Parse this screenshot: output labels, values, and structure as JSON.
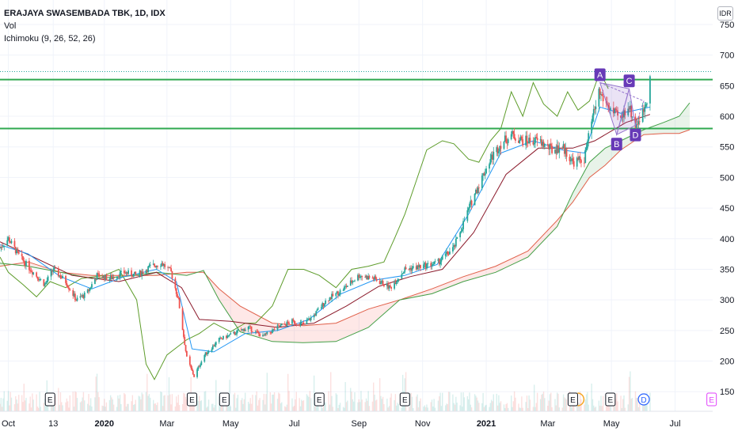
{
  "legend": {
    "title": "ERAJAYA SWASEMBADA TBK, 1D, IDX",
    "vol": "Vol",
    "ichimoku": "Ichimoku (9, 26, 52, 26)"
  },
  "currency": "IDR",
  "colors": {
    "up": "#26a69a",
    "down": "#ef5350",
    "conversion": "#2196f3",
    "base": "#8b1a2b",
    "lagging": "#5d9c2a",
    "spanA": "#43a047",
    "spanB": "#e0604a",
    "cloud_up": "rgba(67,160,71,0.12)",
    "cloud_down": "rgba(244,67,54,0.12)",
    "hline": "#2fa84f",
    "marker": "#673ab7"
  },
  "chart_data": {
    "type": "candlestick",
    "y_ticks": [
      150,
      200,
      250,
      300,
      350,
      400,
      450,
      500,
      550,
      600,
      650,
      700,
      750
    ],
    "ylim": [
      118,
      790
    ],
    "x_range": [
      "2019-09-23",
      "2021-08-06"
    ],
    "x_ticks": [
      {
        "date": "2019-10-01",
        "label": "Oct"
      },
      {
        "date": "2019-11-13",
        "label": "13"
      },
      {
        "date": "2020-01-01",
        "label": "2020"
      },
      {
        "date": "2020-03-01",
        "label": "Mar"
      },
      {
        "date": "2020-05-01",
        "label": "May"
      },
      {
        "date": "2020-07-01",
        "label": "Jul"
      },
      {
        "date": "2020-09-01",
        "label": "Sep"
      },
      {
        "date": "2020-11-01",
        "label": "Nov"
      },
      {
        "date": "2021-01-01",
        "label": "2021"
      },
      {
        "date": "2021-03-01",
        "label": "Mar"
      },
      {
        "date": "2021-05-01",
        "label": "May"
      },
      {
        "date": "2021-07-01",
        "label": "Jul"
      }
    ],
    "horizontal_lines": [
      660,
      580
    ],
    "last_price_line": 673,
    "price_path": [
      [
        "2019-09-23",
        385
      ],
      [
        "2019-10-01",
        400
      ],
      [
        "2019-10-12",
        370
      ],
      [
        "2019-10-25",
        345
      ],
      [
        "2019-11-05",
        325
      ],
      [
        "2019-11-13",
        350
      ],
      [
        "2019-11-25",
        330
      ],
      [
        "2019-12-05",
        300
      ],
      [
        "2019-12-15",
        310
      ],
      [
        "2019-12-25",
        340
      ],
      [
        "2020-01-06",
        335
      ],
      [
        "2020-01-20",
        345
      ],
      [
        "2020-02-01",
        340
      ],
      [
        "2020-02-15",
        355
      ],
      [
        "2020-02-25",
        360
      ],
      [
        "2020-03-05",
        345
      ],
      [
        "2020-03-12",
        300
      ],
      [
        "2020-03-20",
        205
      ],
      [
        "2020-03-27",
        175
      ],
      [
        "2020-04-06",
        210
      ],
      [
        "2020-04-20",
        235
      ],
      [
        "2020-05-04",
        245
      ],
      [
        "2020-05-18",
        255
      ],
      [
        "2020-06-01",
        240
      ],
      [
        "2020-06-15",
        255
      ],
      [
        "2020-06-29",
        265
      ],
      [
        "2020-07-10",
        260
      ],
      [
        "2020-07-20",
        275
      ],
      [
        "2020-08-01",
        300
      ],
      [
        "2020-08-15",
        315
      ],
      [
        "2020-09-01",
        340
      ],
      [
        "2020-09-15",
        335
      ],
      [
        "2020-10-01",
        320
      ],
      [
        "2020-10-15",
        350
      ],
      [
        "2020-11-01",
        355
      ],
      [
        "2020-11-15",
        360
      ],
      [
        "2020-12-01",
        385
      ],
      [
        "2020-12-10",
        425
      ],
      [
        "2020-12-20",
        470
      ],
      [
        "2021-01-05",
        530
      ],
      [
        "2021-01-15",
        555
      ],
      [
        "2021-01-25",
        570
      ],
      [
        "2021-02-05",
        560
      ],
      [
        "2021-02-20",
        560
      ],
      [
        "2021-03-05",
        545
      ],
      [
        "2021-03-15",
        550
      ],
      [
        "2021-03-25",
        525
      ],
      [
        "2021-04-05",
        530
      ],
      [
        "2021-04-12",
        590
      ],
      [
        "2021-04-19",
        640
      ],
      [
        "2021-04-26",
        620
      ],
      [
        "2021-05-03",
        605
      ],
      [
        "2021-05-10",
        595
      ],
      [
        "2021-05-17",
        620
      ],
      [
        "2021-05-24",
        585
      ],
      [
        "2021-05-31",
        605
      ],
      [
        "2021-06-04",
        630
      ],
      [
        "2021-06-07",
        673
      ]
    ],
    "conversion_line": [
      [
        "2019-09-23",
        390
      ],
      [
        "2019-10-20",
        375
      ],
      [
        "2019-11-20",
        338
      ],
      [
        "2019-12-20",
        318
      ],
      [
        "2020-01-20",
        338
      ],
      [
        "2020-02-20",
        350
      ],
      [
        "2020-03-10",
        330
      ],
      [
        "2020-03-25",
        220
      ],
      [
        "2020-04-15",
        215
      ],
      [
        "2020-05-15",
        245
      ],
      [
        "2020-06-15",
        250
      ],
      [
        "2020-07-15",
        268
      ],
      [
        "2020-08-15",
        310
      ],
      [
        "2020-09-15",
        332
      ],
      [
        "2020-10-15",
        340
      ],
      [
        "2020-11-15",
        358
      ],
      [
        "2020-12-15",
        440
      ],
      [
        "2021-01-15",
        540
      ],
      [
        "2021-02-15",
        560
      ],
      [
        "2021-03-15",
        545
      ],
      [
        "2021-04-05",
        540
      ],
      [
        "2021-04-20",
        615
      ],
      [
        "2021-05-10",
        605
      ],
      [
        "2021-06-07",
        615
      ]
    ],
    "base_line": [
      [
        "2019-09-23",
        395
      ],
      [
        "2019-10-25",
        370
      ],
      [
        "2019-12-01",
        340
      ],
      [
        "2020-01-15",
        330
      ],
      [
        "2020-02-20",
        345
      ],
      [
        "2020-03-15",
        320
      ],
      [
        "2020-04-01",
        268
      ],
      [
        "2020-05-01",
        265
      ],
      [
        "2020-06-15",
        255
      ],
      [
        "2020-07-20",
        262
      ],
      [
        "2020-08-20",
        290
      ],
      [
        "2020-09-20",
        322
      ],
      [
        "2020-10-20",
        338
      ],
      [
        "2020-11-20",
        350
      ],
      [
        "2020-12-20",
        410
      ],
      [
        "2021-01-20",
        505
      ],
      [
        "2021-02-20",
        548
      ],
      [
        "2021-03-25",
        548
      ],
      [
        "2021-04-15",
        560
      ],
      [
        "2021-05-15",
        590
      ],
      [
        "2021-06-07",
        603
      ]
    ],
    "lagging_span": [
      [
        "2019-09-23",
        370
      ],
      [
        "2019-10-01",
        345
      ],
      [
        "2019-10-15",
        325
      ],
      [
        "2019-10-28",
        305
      ],
      [
        "2019-11-10",
        330
      ],
      [
        "2019-11-25",
        320
      ],
      [
        "2019-12-10",
        335
      ],
      [
        "2020-01-01",
        340
      ],
      [
        "2020-01-15",
        350
      ],
      [
        "2020-02-01",
        300
      ],
      [
        "2020-02-10",
        195
      ],
      [
        "2020-02-18",
        170
      ],
      [
        "2020-03-01",
        210
      ],
      [
        "2020-03-20",
        235
      ],
      [
        "2020-04-01",
        245
      ],
      [
        "2020-04-15",
        262
      ],
      [
        "2020-05-01",
        248
      ],
      [
        "2020-05-15",
        262
      ],
      [
        "2020-05-25",
        262
      ],
      [
        "2020-06-10",
        290
      ],
      [
        "2020-06-25",
        350
      ],
      [
        "2020-07-10",
        350
      ],
      [
        "2020-07-25",
        340
      ],
      [
        "2020-08-10",
        320
      ],
      [
        "2020-08-25",
        350
      ],
      [
        "2020-09-10",
        355
      ],
      [
        "2020-09-25",
        362
      ],
      [
        "2020-10-05",
        400
      ],
      [
        "2020-10-15",
        440
      ],
      [
        "2020-10-25",
        490
      ],
      [
        "2020-11-05",
        545
      ],
      [
        "2020-11-20",
        560
      ],
      [
        "2020-12-01",
        555
      ],
      [
        "2020-12-15",
        530
      ],
      [
        "2020-12-25",
        525
      ],
      [
        "2021-01-05",
        560
      ],
      [
        "2021-01-15",
        580
      ],
      [
        "2021-01-25",
        640
      ],
      [
        "2021-02-05",
        600
      ],
      [
        "2021-02-15",
        655
      ],
      [
        "2021-02-25",
        620
      ],
      [
        "2021-03-10",
        600
      ],
      [
        "2021-03-20",
        640
      ],
      [
        "2021-03-30",
        610
      ],
      [
        "2021-04-10",
        625
      ],
      [
        "2021-04-20",
        673
      ],
      [
        "2021-04-28",
        645
      ]
    ],
    "span_a": [
      [
        "2019-09-23",
        360
      ],
      [
        "2019-10-20",
        355
      ],
      [
        "2019-11-20",
        345
      ],
      [
        "2019-12-20",
        335
      ],
      [
        "2020-01-20",
        338
      ],
      [
        "2020-02-20",
        345
      ],
      [
        "2020-03-20",
        340
      ],
      [
        "2020-04-05",
        348
      ],
      [
        "2020-04-20",
        300
      ],
      [
        "2020-05-10",
        248
      ],
      [
        "2020-06-10",
        232
      ],
      [
        "2020-07-10",
        230
      ],
      [
        "2020-08-10",
        232
      ],
      [
        "2020-09-10",
        255
      ],
      [
        "2020-10-10",
        300
      ],
      [
        "2020-11-10",
        310
      ],
      [
        "2020-12-10",
        330
      ],
      [
        "2021-01-10",
        345
      ],
      [
        "2021-02-10",
        370
      ],
      [
        "2021-03-10",
        420
      ],
      [
        "2021-03-25",
        475
      ],
      [
        "2021-04-10",
        525
      ],
      [
        "2021-04-25",
        548
      ],
      [
        "2021-05-10",
        560
      ],
      [
        "2021-06-01",
        578
      ],
      [
        "2021-06-20",
        590
      ],
      [
        "2021-07-05",
        600
      ],
      [
        "2021-07-15",
        622
      ]
    ],
    "span_b": [
      [
        "2019-09-23",
        355
      ],
      [
        "2019-10-20",
        362
      ],
      [
        "2019-11-20",
        345
      ],
      [
        "2019-12-20",
        340
      ],
      [
        "2020-01-20",
        340
      ],
      [
        "2020-02-20",
        340
      ],
      [
        "2020-03-20",
        345
      ],
      [
        "2020-04-05",
        345
      ],
      [
        "2020-04-20",
        318
      ],
      [
        "2020-05-10",
        290
      ],
      [
        "2020-06-10",
        262
      ],
      [
        "2020-07-10",
        258
      ],
      [
        "2020-08-10",
        262
      ],
      [
        "2020-09-10",
        285
      ],
      [
        "2020-10-10",
        300
      ],
      [
        "2020-11-10",
        318
      ],
      [
        "2020-12-10",
        338
      ],
      [
        "2021-01-10",
        355
      ],
      [
        "2021-02-10",
        380
      ],
      [
        "2021-03-10",
        430
      ],
      [
        "2021-03-25",
        460
      ],
      [
        "2021-04-10",
        500
      ],
      [
        "2021-04-25",
        520
      ],
      [
        "2021-05-10",
        545
      ],
      [
        "2021-06-01",
        570
      ],
      [
        "2021-06-20",
        572
      ],
      [
        "2021-07-05",
        572
      ],
      [
        "2021-07-15",
        578
      ]
    ],
    "pattern_points": [
      {
        "label": "A",
        "date": "2021-04-20",
        "value": 655,
        "pos": "above"
      },
      {
        "label": "B",
        "date": "2021-05-06",
        "value": 570,
        "pos": "below"
      },
      {
        "label": "C",
        "date": "2021-05-18",
        "value": 645,
        "pos": "above"
      },
      {
        "label": "D",
        "date": "2021-05-24",
        "value": 585,
        "pos": "below"
      }
    ],
    "pattern_end": [
      "2021-06-01",
      625
    ],
    "events": [
      {
        "date": "2019-11-10",
        "label": "E",
        "type": "earnings"
      },
      {
        "date": "2020-03-25",
        "label": "E",
        "type": "earnings"
      },
      {
        "date": "2020-04-25",
        "label": "E",
        "type": "earnings"
      },
      {
        "date": "2020-07-25",
        "label": "E",
        "type": "earnings"
      },
      {
        "date": "2020-10-15",
        "label": "E",
        "type": "earnings"
      },
      {
        "date": "2021-03-25",
        "label": "E",
        "type": "earnings-partial"
      },
      {
        "date": "2021-04-30",
        "label": "E",
        "type": "earnings"
      },
      {
        "date": "2021-06-01",
        "label": "D",
        "type": "dividend"
      },
      {
        "date": "2021-08-05",
        "label": "E",
        "type": "earnings-future"
      }
    ]
  }
}
